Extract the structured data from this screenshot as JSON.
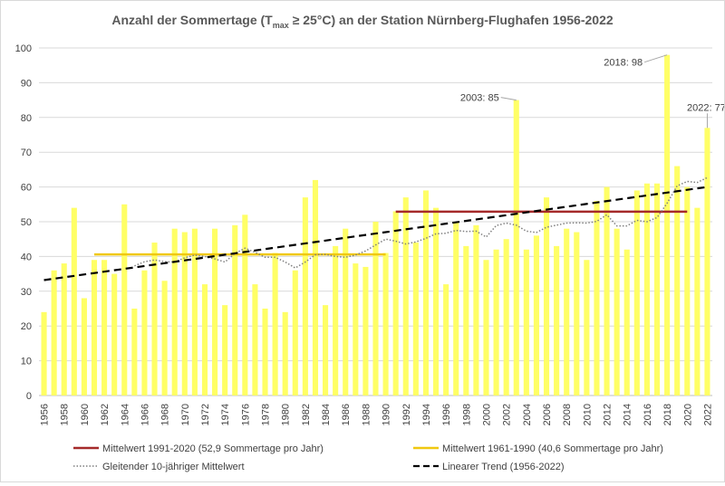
{
  "chart_data": {
    "type": "bar",
    "title": "Anzahl der Sommertage (T",
    "title_sub": "max",
    "title_rest": " ≥ 25°C) an der Station Nürnberg-Flughafen 1956-2022",
    "years": [
      1956,
      1957,
      1958,
      1959,
      1960,
      1961,
      1962,
      1963,
      1964,
      1965,
      1966,
      1967,
      1968,
      1969,
      1970,
      1971,
      1972,
      1973,
      1974,
      1975,
      1976,
      1977,
      1978,
      1979,
      1980,
      1981,
      1982,
      1983,
      1984,
      1985,
      1986,
      1987,
      1988,
      1989,
      1990,
      1991,
      1992,
      1993,
      1994,
      1995,
      1996,
      1997,
      1998,
      1999,
      2000,
      2001,
      2002,
      2003,
      2004,
      2005,
      2006,
      2007,
      2008,
      2009,
      2010,
      2011,
      2012,
      2013,
      2014,
      2015,
      2016,
      2017,
      2018,
      2019,
      2020,
      2021,
      2022
    ],
    "values": [
      24,
      36,
      38,
      54,
      28,
      39,
      39,
      35,
      55,
      25,
      36,
      44,
      33,
      48,
      47,
      48,
      32,
      48,
      26,
      49,
      52,
      32,
      25,
      41,
      24,
      36,
      57,
      62,
      26,
      43,
      48,
      38,
      37,
      50,
      41,
      53,
      57,
      44,
      59,
      54,
      32,
      50,
      43,
      49,
      39,
      42,
      45,
      85,
      42,
      46,
      57,
      43,
      48,
      47,
      39,
      56,
      60,
      48,
      42,
      59,
      61,
      61,
      98,
      66,
      60,
      54,
      77
    ],
    "ylim": [
      0,
      100
    ],
    "yticks": [
      0,
      10,
      20,
      30,
      40,
      50,
      60,
      70,
      80,
      90,
      100
    ],
    "xtick_labels": [
      "1956",
      "1958",
      "1960",
      "1962",
      "1964",
      "1966",
      "1968",
      "1970",
      "1972",
      "1974",
      "1976",
      "1978",
      "1980",
      "1982",
      "1984",
      "1986",
      "1988",
      "1990",
      "1992",
      "1994",
      "1996",
      "1998",
      "2000",
      "2002",
      "2004",
      "2006",
      "2008",
      "2010",
      "2012",
      "2014",
      "2016",
      "2018",
      "2020",
      "2022"
    ],
    "mean_1991_2020": {
      "value": 52.9,
      "from": 1991,
      "to": 2020
    },
    "mean_1961_1990": {
      "value": 40.6,
      "from": 1961,
      "to": 1990
    },
    "trend": {
      "y_start": 33.2,
      "y_end": 60.0
    },
    "moving_avg": {
      "years": [
        1965,
        1966,
        1967,
        1968,
        1969,
        1970,
        1971,
        1972,
        1973,
        1974,
        1975,
        1976,
        1977,
        1978,
        1979,
        1980,
        1981,
        1982,
        1983,
        1984,
        1985,
        1986,
        1987,
        1988,
        1989,
        1990,
        1991,
        1992,
        1993,
        1994,
        1995,
        1996,
        1997,
        1998,
        1999,
        2000,
        2001,
        2002,
        2003,
        2004,
        2005,
        2006,
        2007,
        2008,
        2009,
        2010,
        2011,
        2012,
        2013,
        2014,
        2015,
        2016,
        2017,
        2018,
        2019,
        2020,
        2021,
        2022
      ],
      "values": [
        37.3,
        38.5,
        39,
        38.5,
        38.4,
        39.6,
        40.4,
        40,
        39.3,
        38.4,
        40.8,
        42.4,
        41.2,
        39.8,
        39.8,
        38.4,
        36.7,
        38.4,
        40.5,
        40.6,
        40,
        39.8,
        40.4,
        41.6,
        43.3,
        45,
        44.4,
        43.6,
        44.2,
        45.2,
        46.5,
        46.7,
        47.5,
        47.2,
        47.3,
        45.6,
        48.9,
        49.6,
        49,
        47.3,
        46.9,
        48.4,
        49,
        49.6,
        49.7,
        49.6,
        50.1,
        52,
        48.8,
        48.8,
        50.4,
        50,
        51.2,
        55.3,
        60.3,
        61.6,
        61.3,
        62.7
      ]
    },
    "annotations": [
      {
        "year": 2003,
        "value": 85,
        "label": "2003: 85"
      },
      {
        "year": 2018,
        "value": 98,
        "label": "2018: 98"
      },
      {
        "year": 2022,
        "value": 77,
        "label": "2022: 77"
      }
    ],
    "legend": [
      {
        "key": "mean9120",
        "label": "Mittelwert 1991-2020 (52,9 Sommertage pro Jahr)",
        "color": "#a52a2a"
      },
      {
        "key": "mean6190",
        "label": "Mittelwert 1961-1990 (40,6 Sommertage pro Jahr)",
        "color": "#f0c810"
      },
      {
        "key": "moving",
        "label": "Gleitender 10-jähriger Mittelwert",
        "color": "#808080"
      },
      {
        "key": "trend",
        "label": "Linearer Trend (1956-2022)",
        "color": "#000000"
      }
    ],
    "legend_position": "bottom",
    "grid": true,
    "bar_color": "#ffff66",
    "plot_bg": "#ffffff"
  }
}
